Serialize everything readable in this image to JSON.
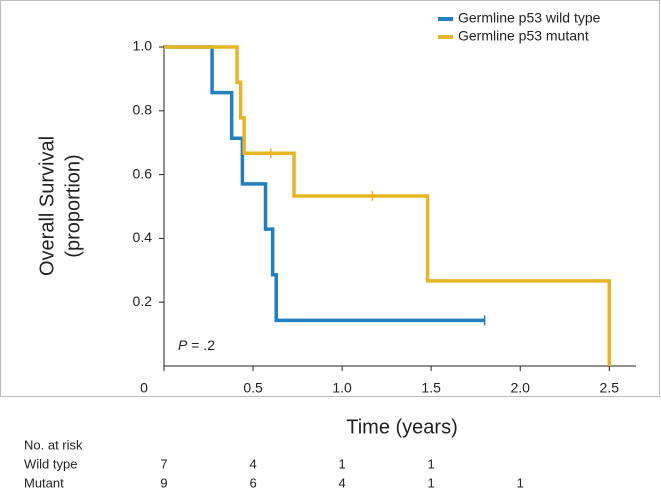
{
  "chart_data": {
    "type": "step",
    "y_label": [
      "Overall Survival",
      "(proportion)"
    ],
    "x_label": "Time (years)",
    "xlim": [
      0,
      2.65
    ],
    "ylim": [
      0,
      1
    ],
    "xticks": [
      0,
      0.5,
      {
        "value": 1,
        "label": "1.0"
      },
      1.5,
      {
        "value": 2,
        "label": "2.0"
      },
      2.5
    ],
    "yticks": [
      0.2,
      0.4,
      0.6,
      0.8,
      {
        "value": 1,
        "label": "1.0"
      }
    ],
    "legend": "top-right",
    "annotation": {
      "symbol": "P",
      "text": " = .2"
    },
    "series": [
      {
        "name": "Germline p53 wild type",
        "color": "#1f7fc0",
        "x": [
          0,
          0.27,
          0.38,
          0.44,
          0.57,
          0.61,
          0.63,
          1.8
        ],
        "values": [
          1,
          0.857,
          0.714,
          0.571,
          0.429,
          0.286,
          0.143,
          0.143
        ],
        "censored": [
          1.8
        ]
      },
      {
        "name": "Germline p53 mutant",
        "color": "#e8b522",
        "x": [
          0,
          0.41,
          0.43,
          0.45,
          0.73,
          1.48,
          2.5
        ],
        "values": [
          1,
          0.889,
          0.778,
          0.667,
          0.533,
          0.267,
          0
        ],
        "censored": [
          0.6,
          1.17
        ]
      }
    ],
    "risk_table": {
      "title": "No. at risk",
      "times": [
        0,
        0.5,
        1,
        1.5,
        2
      ],
      "rows": [
        {
          "label": "Wild type",
          "counts": [
            7,
            4,
            1,
            1
          ]
        },
        {
          "label": "Mutant",
          "counts": [
            9,
            6,
            4,
            1,
            1
          ]
        }
      ]
    }
  }
}
